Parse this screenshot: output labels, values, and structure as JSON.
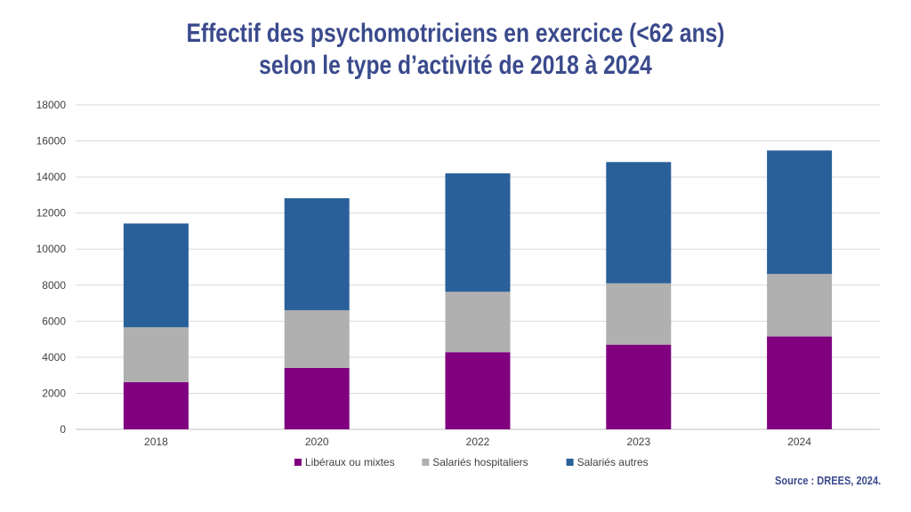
{
  "title": {
    "line1": "Effectif des psychomotriciens en exercice (<62 ans)",
    "line2": "selon le type d’activité de 2018 à 2024"
  },
  "source": "Source : DREES, 2024.",
  "chart_data": {
    "type": "bar",
    "stacked": true,
    "categories": [
      "2018",
      "2020",
      "2022",
      "2023",
      "2024"
    ],
    "series": [
      {
        "name": "Libéraux ou mixtes",
        "color": "#800080",
        "values": [
          2620,
          3410,
          4280,
          4700,
          5150
        ]
      },
      {
        "name": "Salariés hospitaliers",
        "color": "#b0b0b0",
        "values": [
          3040,
          3200,
          3350,
          3400,
          3470
        ]
      },
      {
        "name": "Salariés autres",
        "color": "#2a6099",
        "values": [
          5760,
          6210,
          6570,
          6730,
          6850
        ]
      }
    ],
    "ylim": [
      0,
      18000
    ],
    "yticks": [
      0,
      2000,
      4000,
      6000,
      8000,
      10000,
      12000,
      14000,
      16000,
      18000
    ],
    "grid": true,
    "legend": "bottom",
    "xlabel": "",
    "ylabel": ""
  }
}
